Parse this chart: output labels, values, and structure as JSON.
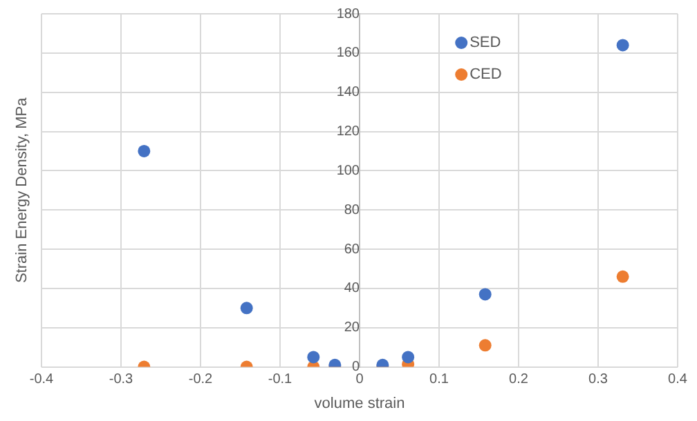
{
  "chart_data": {
    "type": "scatter",
    "xlabel": "volume strain",
    "ylabel": "Strain Energy Density, MPa",
    "xlim": [
      -0.4,
      0.4
    ],
    "xticks": [
      -0.4,
      -0.3,
      -0.2,
      -0.1,
      0,
      0.1,
      0.2,
      0.3,
      0.4
    ],
    "ylim": [
      0,
      180
    ],
    "yticks": [
      0,
      20,
      40,
      60,
      80,
      100,
      120,
      140,
      160,
      180
    ],
    "grid": true,
    "legend": "top right",
    "marker": "circle",
    "x": [
      -0.271,
      -0.142,
      -0.058,
      -0.031,
      0.029,
      0.061,
      0.158,
      0.331
    ],
    "series": [
      {
        "name": "SED",
        "color": "#4472c4",
        "values": [
          110,
          30,
          5,
          1,
          1,
          5,
          37,
          164
        ]
      },
      {
        "name": "CED",
        "color": "#ed7d31",
        "values": [
          0,
          0,
          0,
          0,
          0,
          1.4,
          11,
          46
        ]
      }
    ]
  }
}
